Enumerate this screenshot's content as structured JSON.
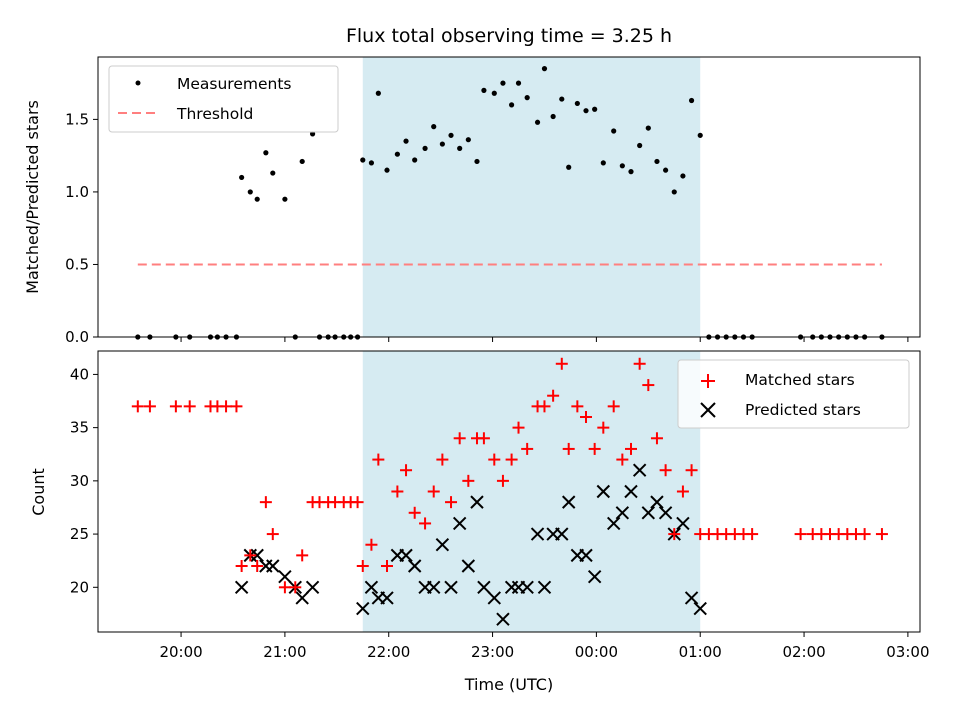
{
  "chart_data": [
    {
      "type": "scatter",
      "title": "Flux total observing time = 3.25 h",
      "xlabel": "",
      "ylabel": "Matched/Predicted stars",
      "x_axis": "time (UTC), shared with the panel below",
      "ylim": [
        0,
        1.93
      ],
      "yticks": [
        "0.0",
        "0.5",
        "1.0",
        "1.5"
      ],
      "legend_placement": "upper-left",
      "highlight_band": {
        "start": "21:45",
        "end": "01:00",
        "color": "#add8e6"
      },
      "series": [
        {
          "name": "Measurements",
          "marker": "dot",
          "color": "#000000",
          "points": [
            [
              "19:35",
              0
            ],
            [
              "19:42",
              0
            ],
            [
              "19:57",
              0
            ],
            [
              "20:05",
              0
            ],
            [
              "20:17",
              0
            ],
            [
              "20:21",
              0
            ],
            [
              "20:26",
              0
            ],
            [
              "20:32",
              0
            ],
            [
              "20:35",
              1.1
            ],
            [
              "20:40",
              1.0
            ],
            [
              "20:44",
              0.95
            ],
            [
              "20:49",
              1.27
            ],
            [
              "20:53",
              1.13
            ],
            [
              "21:00",
              0.95
            ],
            [
              "21:06",
              0
            ],
            [
              "21:10",
              1.21
            ],
            [
              "21:16",
              1.4
            ],
            [
              "21:20",
              0
            ],
            [
              "21:25",
              0
            ],
            [
              "21:29",
              0
            ],
            [
              "21:34",
              0
            ],
            [
              "21:38",
              0
            ],
            [
              "21:42",
              0
            ],
            [
              "21:45",
              1.22
            ],
            [
              "21:50",
              1.2
            ],
            [
              "21:54",
              1.68
            ],
            [
              "21:59",
              1.15
            ],
            [
              "22:05",
              1.26
            ],
            [
              "22:10",
              1.35
            ],
            [
              "22:15",
              1.22
            ],
            [
              "22:21",
              1.3
            ],
            [
              "22:26",
              1.45
            ],
            [
              "22:31",
              1.33
            ],
            [
              "22:36",
              1.39
            ],
            [
              "22:41",
              1.3
            ],
            [
              "22:46",
              1.36
            ],
            [
              "22:51",
              1.21
            ],
            [
              "22:55",
              1.7
            ],
            [
              "23:01",
              1.68
            ],
            [
              "23:06",
              1.75
            ],
            [
              "23:11",
              1.6
            ],
            [
              "23:15",
              1.75
            ],
            [
              "23:20",
              1.65
            ],
            [
              "23:26",
              1.48
            ],
            [
              "23:30",
              1.85
            ],
            [
              "23:35",
              1.52
            ],
            [
              "23:40",
              1.64
            ],
            [
              "23:44",
              1.17
            ],
            [
              "23:49",
              1.61
            ],
            [
              "23:54",
              1.56
            ],
            [
              "23:59",
              1.57
            ],
            [
              "00:04",
              1.2
            ],
            [
              "00:10",
              1.42
            ],
            [
              "00:15",
              1.18
            ],
            [
              "00:20",
              1.14
            ],
            [
              "00:25",
              1.32
            ],
            [
              "00:30",
              1.44
            ],
            [
              "00:35",
              1.21
            ],
            [
              "00:40",
              1.15
            ],
            [
              "00:45",
              1.0
            ],
            [
              "00:50",
              1.11
            ],
            [
              "00:55",
              1.63
            ],
            [
              "01:00",
              1.39
            ],
            [
              "01:05",
              0
            ],
            [
              "01:10",
              0
            ],
            [
              "01:15",
              0
            ],
            [
              "01:20",
              0
            ],
            [
              "01:25",
              0
            ],
            [
              "01:30",
              0
            ],
            [
              "01:58",
              0
            ],
            [
              "02:05",
              0
            ],
            [
              "02:10",
              0
            ],
            [
              "02:15",
              0
            ],
            [
              "02:20",
              0
            ],
            [
              "02:25",
              0
            ],
            [
              "02:30",
              0
            ],
            [
              "02:35",
              0
            ],
            [
              "02:45",
              0
            ]
          ]
        },
        {
          "name": "Threshold",
          "marker": "dashed-line",
          "color": "#ff7f7f",
          "points": [
            [
              "19:35",
              0.5
            ],
            [
              "02:45",
              0.5
            ]
          ]
        }
      ]
    },
    {
      "type": "scatter",
      "title": "",
      "xlabel": "Time (UTC)",
      "ylabel": "Count",
      "ylim": [
        15.8,
        42.2
      ],
      "yticks": [
        "20",
        "25",
        "30",
        "35",
        "40"
      ],
      "xticks": [
        "20:00",
        "21:00",
        "22:00",
        "23:00",
        "00:00",
        "01:00",
        "02:00",
        "03:00"
      ],
      "xlim": [
        "19:12",
        "03:07"
      ],
      "legend_placement": "upper-right",
      "highlight_band": {
        "start": "21:45",
        "end": "01:00",
        "color": "#add8e6"
      },
      "series": [
        {
          "name": "Matched stars",
          "marker": "plus",
          "color": "#ff0000",
          "points": [
            [
              "19:35",
              37
            ],
            [
              "19:42",
              37
            ],
            [
              "19:57",
              37
            ],
            [
              "20:05",
              37
            ],
            [
              "20:17",
              37
            ],
            [
              "20:21",
              37
            ],
            [
              "20:26",
              37
            ],
            [
              "20:32",
              37
            ],
            [
              "20:35",
              22
            ],
            [
              "20:40",
              23
            ],
            [
              "20:44",
              22
            ],
            [
              "20:49",
              28
            ],
            [
              "20:53",
              25
            ],
            [
              "21:00",
              20
            ],
            [
              "21:06",
              20
            ],
            [
              "21:10",
              23
            ],
            [
              "21:16",
              28
            ],
            [
              "21:20",
              28
            ],
            [
              "21:25",
              28
            ],
            [
              "21:29",
              28
            ],
            [
              "21:34",
              28
            ],
            [
              "21:38",
              28
            ],
            [
              "21:42",
              28
            ],
            [
              "21:45",
              22
            ],
            [
              "21:50",
              24
            ],
            [
              "21:54",
              32
            ],
            [
              "21:59",
              22
            ],
            [
              "22:05",
              29
            ],
            [
              "22:10",
              31
            ],
            [
              "22:15",
              27
            ],
            [
              "22:21",
              26
            ],
            [
              "22:26",
              29
            ],
            [
              "22:31",
              32
            ],
            [
              "22:36",
              28
            ],
            [
              "22:41",
              34
            ],
            [
              "22:46",
              30
            ],
            [
              "22:51",
              34
            ],
            [
              "22:55",
              34
            ],
            [
              "23:01",
              32
            ],
            [
              "23:06",
              30
            ],
            [
              "23:11",
              32
            ],
            [
              "23:15",
              35
            ],
            [
              "23:20",
              33
            ],
            [
              "23:26",
              37
            ],
            [
              "23:30",
              37
            ],
            [
              "23:35",
              38
            ],
            [
              "23:40",
              41
            ],
            [
              "23:44",
              33
            ],
            [
              "23:49",
              37
            ],
            [
              "23:54",
              36
            ],
            [
              "23:59",
              33
            ],
            [
              "00:04",
              35
            ],
            [
              "00:10",
              37
            ],
            [
              "00:15",
              32
            ],
            [
              "00:20",
              33
            ],
            [
              "00:25",
              41
            ],
            [
              "00:30",
              39
            ],
            [
              "00:35",
              34
            ],
            [
              "00:40",
              31
            ],
            [
              "00:45",
              25
            ],
            [
              "00:50",
              29
            ],
            [
              "00:55",
              31
            ],
            [
              "01:00",
              25
            ],
            [
              "01:05",
              25
            ],
            [
              "01:10",
              25
            ],
            [
              "01:15",
              25
            ],
            [
              "01:20",
              25
            ],
            [
              "01:25",
              25
            ],
            [
              "01:30",
              25
            ],
            [
              "01:58",
              25
            ],
            [
              "02:05",
              25
            ],
            [
              "02:10",
              25
            ],
            [
              "02:15",
              25
            ],
            [
              "02:20",
              25
            ],
            [
              "02:25",
              25
            ],
            [
              "02:30",
              25
            ],
            [
              "02:35",
              25
            ],
            [
              "02:45",
              25
            ]
          ]
        },
        {
          "name": "Predicted stars",
          "marker": "x",
          "color": "#000000",
          "points": [
            [
              "20:35",
              20
            ],
            [
              "20:40",
              23
            ],
            [
              "20:44",
              23
            ],
            [
              "20:49",
              22
            ],
            [
              "20:53",
              22
            ],
            [
              "21:00",
              21
            ],
            [
              "21:06",
              20
            ],
            [
              "21:10",
              19
            ],
            [
              "21:16",
              20
            ],
            [
              "21:45",
              18
            ],
            [
              "21:50",
              20
            ],
            [
              "21:54",
              19
            ],
            [
              "21:59",
              19
            ],
            [
              "22:05",
              23
            ],
            [
              "22:10",
              23
            ],
            [
              "22:15",
              22
            ],
            [
              "22:21",
              20
            ],
            [
              "22:26",
              20
            ],
            [
              "22:31",
              24
            ],
            [
              "22:36",
              20
            ],
            [
              "22:41",
              26
            ],
            [
              "22:46",
              22
            ],
            [
              "22:51",
              28
            ],
            [
              "22:55",
              20
            ],
            [
              "23:01",
              19
            ],
            [
              "23:06",
              17
            ],
            [
              "23:11",
              20
            ],
            [
              "23:15",
              20
            ],
            [
              "23:20",
              20
            ],
            [
              "23:26",
              25
            ],
            [
              "23:30",
              20
            ],
            [
              "23:35",
              25
            ],
            [
              "23:40",
              25
            ],
            [
              "23:44",
              28
            ],
            [
              "23:49",
              23
            ],
            [
              "23:54",
              23
            ],
            [
              "23:59",
              21
            ],
            [
              "00:04",
              29
            ],
            [
              "00:10",
              26
            ],
            [
              "00:15",
              27
            ],
            [
              "00:20",
              29
            ],
            [
              "00:25",
              31
            ],
            [
              "00:30",
              27
            ],
            [
              "00:35",
              28
            ],
            [
              "00:40",
              27
            ],
            [
              "00:45",
              25
            ],
            [
              "00:50",
              26
            ],
            [
              "00:55",
              19
            ],
            [
              "01:00",
              18
            ]
          ]
        }
      ]
    }
  ]
}
